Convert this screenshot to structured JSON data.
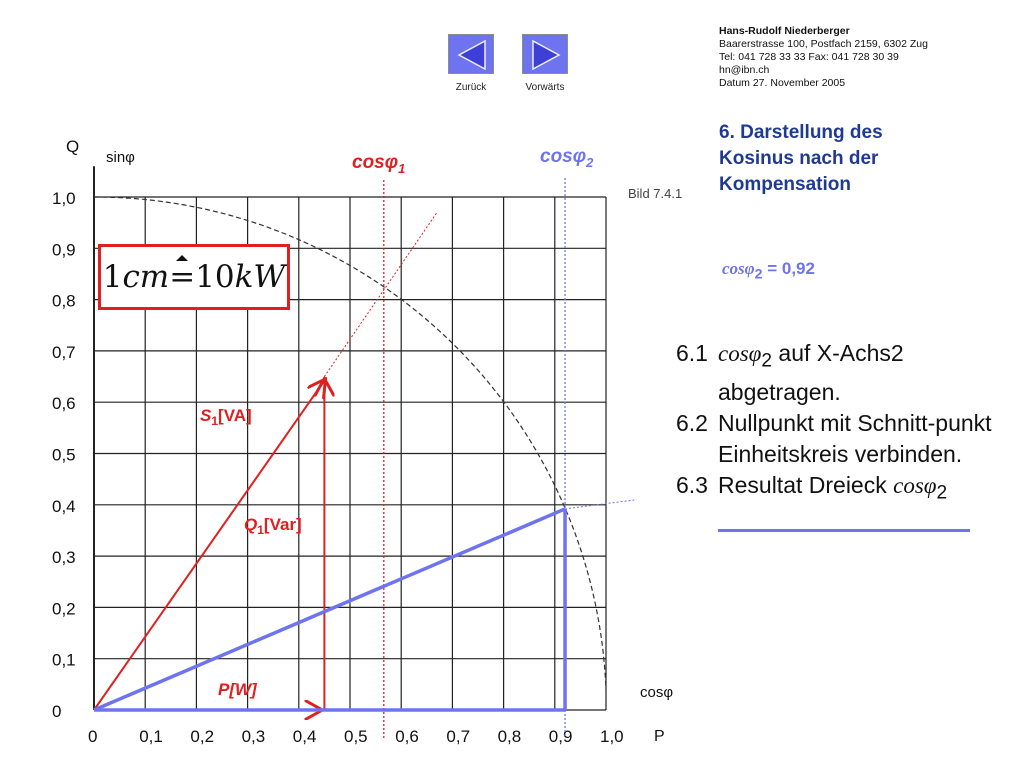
{
  "nav": {
    "back_label": "Zurück",
    "forward_label": "Vorwärts"
  },
  "author": {
    "name": "Hans-Rudolf Niederberger",
    "address": "Baarerstrasse 100, Postfach 2159, 6302 Zug",
    "phone": "Tel: 041 728 33 33    Fax: 041 728 30 39",
    "email": "hn@ibn.ch",
    "date": "Datum 27. November 2005"
  },
  "section": {
    "line1": "6. Darstellung des",
    "line2": "Kosinus nach der",
    "line3": "Kompensation"
  },
  "cos_value": {
    "symbol": "cosφ",
    "sub": "2",
    "rest": " = 0,92"
  },
  "steps": [
    {
      "num": "6.1",
      "pre": "",
      "ital": "cosφ",
      "sub": "2",
      "post": " auf X-Achs2 abgetragen."
    },
    {
      "num": "6.2",
      "pre": "Nullpunkt mit Schnitt-punkt Einheitskreis verbinden.",
      "ital": "",
      "sub": "",
      "post": ""
    },
    {
      "num": "6.3",
      "pre": "Resultat Dreieck ",
      "ital": "cosφ",
      "sub": "2",
      "post": ""
    }
  ],
  "figure_label": "Bild 7.4.1",
  "scale": {
    "left": "1",
    "unit1": "cm",
    "corr": "=",
    "right": "10",
    "unit2": "kW"
  },
  "axes": {
    "y_label_q": "Q",
    "y_label_sin": "sinφ",
    "x_label_cos": "cosφ",
    "x_label_p": "P",
    "y_ticks": [
      "0",
      "0,1",
      "0,2",
      "0,3",
      "0,4",
      "0,5",
      "0,6",
      "0,7",
      "0,8",
      "0,9",
      "1,0"
    ],
    "x_ticks": [
      "0",
      "0,1",
      "0,2",
      "0,3",
      "0,4",
      "0,5",
      "0,6",
      "0,7",
      "0,8",
      "0,9",
      "1,0"
    ]
  },
  "labels": {
    "cos1": "cosφ",
    "cos1_sub": "1",
    "cos2": "cosφ",
    "cos2_sub": "2",
    "s1": "S",
    "s1_sub": "1",
    "s1_unit": "[VA]",
    "q1": "Q",
    "q1_sub": "1",
    "q1_unit": "[Var]",
    "p": "P[W]"
  },
  "values": {
    "cos1": 0.566,
    "cos2": 0.92,
    "p": 0.45,
    "q1": 0.65
  },
  "colors": {
    "red": "#e02020",
    "blue": "#6e73f0",
    "grid": "#222222",
    "title": "#1f3a93"
  },
  "icons": {
    "back": "triangle-left-icon",
    "forward": "triangle-right-icon"
  }
}
